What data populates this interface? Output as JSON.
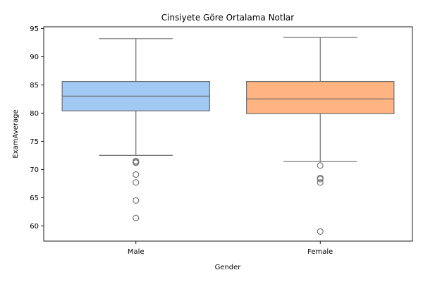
{
  "chart_data": {
    "type": "box",
    "title": "Cinsiyete Göre Ortalama Notlar",
    "xlabel": "Gender",
    "ylabel": "ExamAverage",
    "ylim": [
      57.3,
      95.3
    ],
    "yticks": [
      60,
      65,
      70,
      75,
      80,
      85,
      90,
      95
    ],
    "grid": false,
    "categories": [
      "Male",
      "Female"
    ],
    "colors": {
      "Male": "#a1c9f4",
      "Female": "#ffb482"
    },
    "line_color": "#6e6e6e",
    "boxes": [
      {
        "category": "Male",
        "whisker_low": 72.5,
        "q1": 80.4,
        "median": 83.0,
        "q3": 85.6,
        "whisker_high": 93.2,
        "outliers": [
          71.5,
          71.3,
          71.2,
          69.1,
          67.7,
          64.5,
          61.4
        ]
      },
      {
        "category": "Female",
        "whisker_low": 71.4,
        "q1": 79.9,
        "median": 82.5,
        "q3": 85.6,
        "whisker_high": 93.4,
        "outliers": [
          70.7,
          68.5,
          68.3,
          67.7,
          59.0
        ]
      }
    ]
  }
}
